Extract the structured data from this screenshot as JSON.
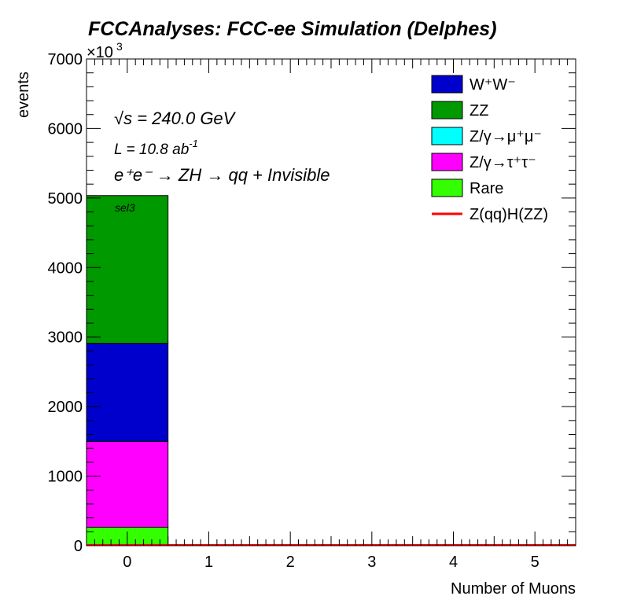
{
  "chart_data": {
    "type": "bar",
    "stacked": true,
    "title": "FCCAnalyses: FCC-ee Simulation (Delphes)",
    "xlabel": "Number of Muons",
    "ylabel": "events",
    "y_multiplier": "×10",
    "y_multiplier_exp": "3",
    "xlim": [
      -0.5,
      5.5
    ],
    "ylim": [
      0,
      7000
    ],
    "x_ticks": [
      "0",
      "1",
      "2",
      "3",
      "4",
      "5"
    ],
    "y_ticks": [
      "0",
      "1000",
      "2000",
      "3000",
      "4000",
      "5000",
      "6000",
      "7000"
    ],
    "bin_centers": [
      0,
      1,
      2,
      3,
      4,
      5
    ],
    "series": [
      {
        "name": "Rare",
        "color": "#33ff00",
        "values": [
          265,
          0,
          0,
          0,
          0,
          0
        ]
      },
      {
        "name": "Z/γ→τ⁺τ⁻",
        "color": "#ff00ff",
        "values": [
          1235,
          0,
          0,
          0,
          0,
          0
        ]
      },
      {
        "name": "Z/γ→μ⁺μ⁻",
        "color": "#00ffff",
        "values": [
          0,
          0,
          0,
          0,
          0,
          0
        ]
      },
      {
        "name": "W⁺W⁻",
        "color": "#0000cc",
        "values": [
          1410,
          0,
          0,
          0,
          0,
          0
        ]
      },
      {
        "name": "ZZ",
        "color": "#009900",
        "values": [
          2125,
          0,
          0,
          0,
          0,
          0
        ]
      }
    ],
    "signal": {
      "name": "Z(qq)H(ZZ)",
      "color": "#ff0000",
      "values": [
        0,
        0,
        0,
        0,
        0,
        0
      ]
    },
    "legend_position": "top-right",
    "annotations": {
      "energy_sqrt": "√s",
      "energy_rest": " = 240.0 GeV",
      "lumi": "L = 10.8 ab",
      "lumi_exp": "-1",
      "process": "e⁺e⁻ → ZH → qq + Invisible",
      "selection": "sel3"
    }
  }
}
